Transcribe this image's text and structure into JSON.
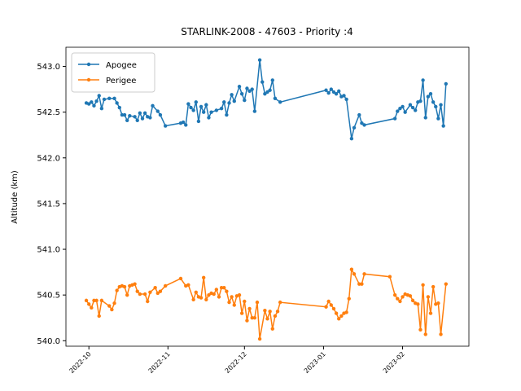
{
  "chart_data": {
    "type": "line",
    "title": "STARLINK-2008 - 47603 - Priority :4",
    "y_label": "Altitude (km)",
    "legend": "upper left",
    "xlim": [
      "2022-09-22",
      "2023-02-27"
    ],
    "xticks": [
      {
        "value": "2022-10-01",
        "label": "2022-10"
      },
      {
        "value": "2022-11-01",
        "label": "2022-11"
      },
      {
        "value": "2022-12-01",
        "label": "2022-12"
      },
      {
        "value": "2023-01-01",
        "label": "2023-01"
      },
      {
        "value": "2023-02-01",
        "label": "2023-02"
      }
    ],
    "ylim": [
      539.94,
      543.21
    ],
    "yticks": [
      {
        "value": 540.0,
        "label": "540.0"
      },
      {
        "value": 540.5,
        "label": "540.5"
      },
      {
        "value": 541.0,
        "label": "541.0"
      },
      {
        "value": 541.5,
        "label": "541.5"
      },
      {
        "value": 542.0,
        "label": "542.0"
      },
      {
        "value": 542.5,
        "label": "542.5"
      },
      {
        "value": 543.0,
        "label": "543.0"
      }
    ],
    "series": [
      {
        "name": "Apogee",
        "color": "#1f77b4",
        "x": [
          "2022-09-30",
          "2022-10-01",
          "2022-10-02",
          "2022-10-03",
          "2022-10-04",
          "2022-10-05",
          "2022-10-06",
          "2022-10-07",
          "2022-10-09",
          "2022-10-11",
          "2022-10-12",
          "2022-10-13",
          "2022-10-14",
          "2022-10-15",
          "2022-10-16",
          "2022-10-17",
          "2022-10-19",
          "2022-10-20",
          "2022-10-21",
          "2022-10-22",
          "2022-10-23",
          "2022-10-24",
          "2022-10-25",
          "2022-10-26",
          "2022-10-28",
          "2022-10-29",
          "2022-10-31",
          "2022-11-06",
          "2022-11-07",
          "2022-11-08",
          "2022-11-09",
          "2022-11-10",
          "2022-11-11",
          "2022-11-12",
          "2022-11-13",
          "2022-11-14",
          "2022-11-15",
          "2022-11-16",
          "2022-11-17",
          "2022-11-18",
          "2022-11-20",
          "2022-11-22",
          "2022-11-23",
          "2022-11-24",
          "2022-11-25",
          "2022-11-26",
          "2022-11-27",
          "2022-11-29",
          "2022-11-30",
          "2022-12-01",
          "2022-12-02",
          "2022-12-03",
          "2022-12-04",
          "2022-12-05",
          "2022-12-07",
          "2022-12-08",
          "2022-12-09",
          "2022-12-10",
          "2022-12-11",
          "2022-12-12",
          "2022-12-13",
          "2022-12-15",
          "2023-01-02",
          "2023-01-03",
          "2023-01-04",
          "2023-01-05",
          "2023-01-06",
          "2023-01-07",
          "2023-01-08",
          "2023-01-09",
          "2023-01-10",
          "2023-01-12",
          "2023-01-13",
          "2023-01-15",
          "2023-01-16",
          "2023-01-17",
          "2023-01-29",
          "2023-01-30",
          "2023-01-31",
          "2023-02-01",
          "2023-02-02",
          "2023-02-04",
          "2023-02-05",
          "2023-02-06",
          "2023-02-07",
          "2023-02-08",
          "2023-02-09",
          "2023-02-10",
          "2023-02-11",
          "2023-02-12",
          "2023-02-13",
          "2023-02-14",
          "2023-02-15",
          "2023-02-16",
          "2023-02-17",
          "2023-02-18"
        ],
        "values": [
          542.6,
          542.59,
          542.61,
          542.57,
          542.62,
          542.68,
          542.54,
          542.64,
          542.65,
          542.65,
          542.6,
          542.55,
          542.47,
          542.47,
          542.41,
          542.46,
          542.45,
          542.41,
          542.49,
          542.43,
          542.49,
          542.45,
          542.44,
          542.57,
          542.51,
          542.47,
          542.35,
          542.38,
          542.39,
          542.36,
          542.59,
          542.55,
          542.52,
          542.61,
          542.4,
          542.56,
          542.5,
          542.58,
          542.44,
          542.5,
          542.52,
          542.54,
          542.61,
          542.47,
          542.6,
          542.69,
          542.62,
          542.78,
          542.7,
          542.63,
          542.76,
          542.73,
          542.75,
          542.51,
          543.07,
          542.83,
          542.7,
          542.72,
          542.74,
          542.85,
          542.65,
          542.61,
          542.74,
          542.71,
          542.75,
          542.72,
          542.7,
          542.73,
          542.67,
          542.68,
          542.64,
          542.21,
          542.33,
          542.47,
          542.38,
          542.36,
          542.43,
          542.51,
          542.54,
          542.56,
          542.5,
          542.58,
          542.55,
          542.52,
          542.61,
          542.62,
          542.85,
          542.44,
          542.67,
          542.7,
          542.61,
          542.56,
          542.43,
          542.58,
          542.35,
          542.81
        ]
      },
      {
        "name": "Perigee",
        "color": "#ff7f0e",
        "x": [
          "2022-09-30",
          "2022-10-01",
          "2022-10-02",
          "2022-10-03",
          "2022-10-04",
          "2022-10-05",
          "2022-10-06",
          "2022-10-09",
          "2022-10-10",
          "2022-10-11",
          "2022-10-12",
          "2022-10-13",
          "2022-10-14",
          "2022-10-15",
          "2022-10-16",
          "2022-10-17",
          "2022-10-18",
          "2022-10-19",
          "2022-10-20",
          "2022-10-21",
          "2022-10-23",
          "2022-10-24",
          "2022-10-25",
          "2022-10-27",
          "2022-10-28",
          "2022-10-29",
          "2022-10-31",
          "2022-11-06",
          "2022-11-08",
          "2022-11-09",
          "2022-11-11",
          "2022-11-12",
          "2022-11-13",
          "2022-11-14",
          "2022-11-15",
          "2022-11-16",
          "2022-11-17",
          "2022-11-18",
          "2022-11-19",
          "2022-11-20",
          "2022-11-21",
          "2022-11-22",
          "2022-11-23",
          "2022-11-24",
          "2022-11-25",
          "2022-11-26",
          "2022-11-27",
          "2022-11-28",
          "2022-11-29",
          "2022-11-30",
          "2022-12-01",
          "2022-12-02",
          "2022-12-03",
          "2022-12-04",
          "2022-12-05",
          "2022-12-06",
          "2022-12-07",
          "2022-12-09",
          "2022-12-10",
          "2022-12-11",
          "2022-12-12",
          "2022-12-13",
          "2022-12-14",
          "2022-12-15",
          "2023-01-02",
          "2023-01-03",
          "2023-01-04",
          "2023-01-05",
          "2023-01-06",
          "2023-01-07",
          "2023-01-08",
          "2023-01-09",
          "2023-01-10",
          "2023-01-11",
          "2023-01-12",
          "2023-01-13",
          "2023-01-15",
          "2023-01-16",
          "2023-01-17",
          "2023-01-27",
          "2023-01-29",
          "2023-01-30",
          "2023-01-31",
          "2023-02-01",
          "2023-02-02",
          "2023-02-03",
          "2023-02-04",
          "2023-02-05",
          "2023-02-06",
          "2023-02-07",
          "2023-02-08",
          "2023-02-09",
          "2023-02-10",
          "2023-02-11",
          "2023-02-12",
          "2023-02-13",
          "2023-02-14",
          "2023-02-15",
          "2023-02-16",
          "2023-02-18"
        ],
        "values": [
          540.44,
          540.4,
          540.36,
          540.44,
          540.44,
          540.27,
          540.44,
          540.38,
          540.34,
          540.41,
          540.55,
          540.59,
          540.6,
          540.59,
          540.5,
          540.6,
          540.61,
          540.62,
          540.54,
          540.51,
          540.51,
          540.43,
          540.53,
          540.58,
          540.52,
          540.54,
          540.6,
          540.68,
          540.6,
          540.61,
          540.45,
          540.53,
          540.48,
          540.47,
          540.69,
          540.45,
          540.5,
          540.52,
          540.51,
          540.56,
          540.48,
          540.58,
          540.58,
          540.54,
          540.42,
          540.48,
          540.39,
          540.49,
          540.5,
          540.3,
          540.43,
          540.22,
          540.35,
          540.25,
          540.25,
          540.42,
          540.02,
          540.33,
          540.24,
          540.32,
          540.13,
          540.27,
          540.32,
          540.42,
          540.37,
          540.43,
          540.39,
          540.35,
          540.3,
          540.24,
          540.27,
          540.3,
          540.31,
          540.46,
          540.78,
          540.73,
          540.62,
          540.62,
          540.73,
          540.7,
          540.5,
          540.46,
          540.43,
          540.48,
          540.51,
          540.5,
          540.49,
          540.44,
          540.41,
          540.4,
          540.12,
          540.61,
          540.07,
          540.48,
          540.3,
          540.59,
          540.4,
          540.41,
          540.07,
          540.62
        ]
      }
    ]
  }
}
